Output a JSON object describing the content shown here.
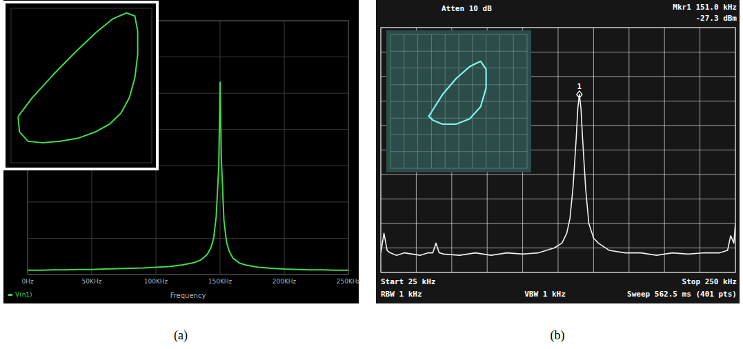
{
  "chart_data": [
    {
      "type": "line",
      "title": "(a)",
      "x_label": "Frequency",
      "x": [
        0,
        10,
        20,
        30,
        40,
        50,
        60,
        70,
        80,
        90,
        100,
        110,
        120,
        130,
        135,
        140,
        143,
        145,
        147,
        149,
        150,
        151,
        153,
        155,
        157,
        160,
        165,
        170,
        180,
        190,
        200,
        210,
        220,
        230,
        240,
        250
      ],
      "series": [
        {
          "name": "V(n1)",
          "color": "#3fdc4a",
          "values": [
            0.12,
            0.12,
            0.13,
            0.13,
            0.14,
            0.14,
            0.15,
            0.16,
            0.17,
            0.18,
            0.2,
            0.22,
            0.26,
            0.33,
            0.4,
            0.55,
            0.75,
            1.0,
            1.6,
            3.0,
            5.3,
            3.2,
            1.5,
            0.9,
            0.65,
            0.45,
            0.32,
            0.26,
            0.2,
            0.17,
            0.15,
            0.14,
            0.13,
            0.13,
            0.12,
            0.12
          ]
        }
      ],
      "xlim": [
        0,
        250
      ],
      "xticks": [
        {
          "value": 0,
          "label": "0Hz"
        },
        {
          "value": 50,
          "label": "50KHz"
        },
        {
          "value": 100,
          "label": "100KHz"
        },
        {
          "value": 150,
          "label": "150KHz"
        },
        {
          "value": 200,
          "label": "200KHz"
        },
        {
          "value": 250,
          "label": "250KHz"
        }
      ],
      "ylim": [
        0,
        7
      ],
      "yticks": [
        0,
        1,
        2,
        3,
        4,
        5,
        6,
        7
      ],
      "grid": true,
      "legend": "bottom-left",
      "tick_labels": "x"
    },
    {
      "type": "line",
      "x": [
        0.05,
        0.15,
        0.3,
        0.45,
        0.6,
        0.72,
        0.82,
        0.88,
        0.9,
        0.9,
        0.88,
        0.84,
        0.78,
        0.7,
        0.6,
        0.48,
        0.35,
        0.22,
        0.12,
        0.06,
        0.05
      ],
      "values": [
        0.3,
        0.42,
        0.57,
        0.71,
        0.84,
        0.93,
        0.97,
        0.95,
        0.85,
        0.7,
        0.55,
        0.42,
        0.32,
        0.25,
        0.2,
        0.16,
        0.14,
        0.13,
        0.14,
        0.2,
        0.3
      ],
      "color": "#3fdc4a",
      "xlim": [
        0,
        1
      ],
      "ylim": [
        0,
        1
      ],
      "grid": false,
      "tick_labels": false
    },
    {
      "type": "line",
      "title": "(b)",
      "x": [
        25,
        27,
        29,
        31,
        35,
        40,
        45,
        50,
        55,
        58,
        60,
        62,
        65,
        75,
        85,
        95,
        105,
        115,
        125,
        130,
        135,
        140,
        143,
        145,
        147,
        149,
        150,
        151,
        152,
        153,
        155,
        157,
        160,
        163,
        170,
        180,
        190,
        200,
        210,
        220,
        230,
        240,
        245,
        247,
        249,
        250
      ],
      "values": [
        -92,
        -84,
        -91,
        -92,
        -93,
        -92,
        -92.5,
        -93,
        -92,
        -92,
        -88,
        -92,
        -92.5,
        -93,
        -92,
        -93,
        -92,
        -92.5,
        -92,
        -91,
        -90,
        -88,
        -84,
        -78,
        -65,
        -45,
        -33,
        -27.3,
        -33,
        -45,
        -66,
        -80,
        -86,
        -88,
        -91,
        -92,
        -92,
        -93,
        -92,
        -92.5,
        -92,
        -92,
        -91,
        -85,
        -88,
        -80
      ],
      "color": "#f2f2f2",
      "xlim": [
        25,
        250
      ],
      "xticks": [
        25,
        47.5,
        70,
        92.5,
        115,
        137.5,
        160,
        182.5,
        205,
        227.5,
        250
      ],
      "ylim": [
        -100,
        0
      ],
      "yticks": [
        -100,
        -90,
        -80,
        -70,
        -60,
        -50,
        -40,
        -30,
        -20,
        -10,
        0
      ],
      "grid": true,
      "tick_labels": false,
      "peak_marker": {
        "label": "1",
        "x": 151,
        "y": -27.3
      },
      "annotations": [
        "Atten 10 dB",
        "Mkr1 151.0 kHz",
        "-27.3 dBm",
        "Start 25 kHz",
        "Stop 250 kHz",
        "RBW 1 kHz",
        "VBW 1 kHz",
        "Sweep 562.5 ms (401 pts)"
      ]
    },
    {
      "type": "line",
      "x": [
        0.3,
        0.38,
        0.48,
        0.58,
        0.66,
        0.7,
        0.7,
        0.66,
        0.58,
        0.48,
        0.38,
        0.31,
        0.28,
        0.3
      ],
      "values": [
        0.42,
        0.55,
        0.67,
        0.76,
        0.8,
        0.74,
        0.6,
        0.46,
        0.37,
        0.33,
        0.33,
        0.36,
        0.39,
        0.42
      ],
      "color": "#7ff5e6",
      "xlim": [
        0,
        1
      ],
      "ylim": [
        0,
        1
      ],
      "xticks": [
        0,
        0.1,
        0.2,
        0.3,
        0.4,
        0.5,
        0.6,
        0.7,
        0.8,
        0.9,
        1
      ],
      "yticks": [
        0,
        0.125,
        0.25,
        0.375,
        0.5,
        0.625,
        0.75,
        0.875,
        1
      ],
      "grid": true,
      "tick_labels": false
    }
  ]
}
